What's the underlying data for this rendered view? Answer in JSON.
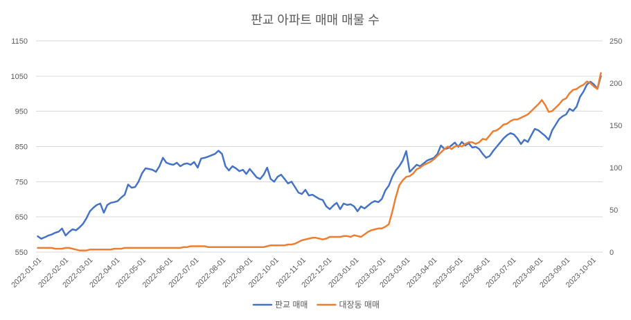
{
  "chart_data": {
    "type": "line",
    "title": "판교 아파트 매매 매물 수",
    "xlabel": "",
    "ylabel": "",
    "grid": true,
    "legend": "bottom",
    "xlim": [
      "2021-12-30",
      "2023-10-13"
    ],
    "x_ticks": [
      "2022-01-01",
      "2022-02-01",
      "2022-03-01",
      "2022-04-01",
      "2022-05-01",
      "2022-06-01",
      "2022-07-01",
      "2022-08-01",
      "2022-09-01",
      "2022-10-01",
      "2022-11-01",
      "2022-12-01",
      "2023-01-01",
      "2023-02-01",
      "2023-03-01",
      "2023-04-01",
      "2023-05-01",
      "2023-06-01",
      "2023-07-01",
      "2023-08-01",
      "2023-09-01",
      "2023-10-01"
    ],
    "y_left": {
      "ylim": [
        550,
        1150
      ],
      "ticks": [
        550,
        650,
        750,
        850,
        950,
        1050,
        1150
      ]
    },
    "y_right": {
      "ylim": [
        0,
        250
      ],
      "ticks": [
        0,
        50,
        100,
        150,
        200,
        250
      ]
    },
    "x": [
      "2022-01-01",
      "2022-01-05",
      "2022-01-09",
      "2022-01-13",
      "2022-01-17",
      "2022-01-21",
      "2022-01-25",
      "2022-01-29",
      "2022-02-02",
      "2022-02-06",
      "2022-02-10",
      "2022-02-14",
      "2022-02-18",
      "2022-02-22",
      "2022-02-26",
      "2022-03-02",
      "2022-03-06",
      "2022-03-10",
      "2022-03-14",
      "2022-03-18",
      "2022-03-22",
      "2022-03-26",
      "2022-03-30",
      "2022-04-03",
      "2022-04-07",
      "2022-04-11",
      "2022-04-15",
      "2022-04-19",
      "2022-04-23",
      "2022-04-27",
      "2022-05-01",
      "2022-05-05",
      "2022-05-09",
      "2022-05-13",
      "2022-05-17",
      "2022-05-21",
      "2022-05-25",
      "2022-05-29",
      "2022-06-02",
      "2022-06-06",
      "2022-06-10",
      "2022-06-14",
      "2022-06-18",
      "2022-06-22",
      "2022-06-26",
      "2022-06-30",
      "2022-07-04",
      "2022-07-08",
      "2022-07-12",
      "2022-07-16",
      "2022-07-20",
      "2022-07-24",
      "2022-07-28",
      "2022-08-01",
      "2022-08-05",
      "2022-08-09",
      "2022-08-13",
      "2022-08-17",
      "2022-08-21",
      "2022-08-25",
      "2022-08-29",
      "2022-09-02",
      "2022-09-06",
      "2022-09-10",
      "2022-09-14",
      "2022-09-18",
      "2022-09-22",
      "2022-09-26",
      "2022-09-30",
      "2022-10-04",
      "2022-10-08",
      "2022-10-12",
      "2022-10-16",
      "2022-10-20",
      "2022-10-24",
      "2022-10-28",
      "2022-11-01",
      "2022-11-05",
      "2022-11-09",
      "2022-11-13",
      "2022-11-17",
      "2022-11-21",
      "2022-11-25",
      "2022-11-29",
      "2022-12-03",
      "2022-12-07",
      "2022-12-11",
      "2022-12-15",
      "2022-12-19",
      "2022-12-23",
      "2022-12-27",
      "2022-12-31",
      "2023-01-04",
      "2023-01-08",
      "2023-01-12",
      "2023-01-16",
      "2023-01-20",
      "2023-01-24",
      "2023-01-28",
      "2023-02-01",
      "2023-02-05",
      "2023-02-09",
      "2023-02-13",
      "2023-02-17",
      "2023-02-21",
      "2023-02-25",
      "2023-03-01",
      "2023-03-05",
      "2023-03-09",
      "2023-03-13",
      "2023-03-17",
      "2023-03-21",
      "2023-03-25",
      "2023-03-29",
      "2023-04-02",
      "2023-04-06",
      "2023-04-10",
      "2023-04-14",
      "2023-04-18",
      "2023-04-22",
      "2023-04-26",
      "2023-04-30",
      "2023-05-04",
      "2023-05-08",
      "2023-05-12",
      "2023-05-16",
      "2023-05-20",
      "2023-05-24",
      "2023-05-28",
      "2023-06-01",
      "2023-06-05",
      "2023-06-09",
      "2023-06-13",
      "2023-06-17",
      "2023-06-21",
      "2023-06-25",
      "2023-06-29",
      "2023-07-03",
      "2023-07-07",
      "2023-07-11",
      "2023-07-15",
      "2023-07-19",
      "2023-07-23",
      "2023-07-27",
      "2023-07-31",
      "2023-08-04",
      "2023-08-08",
      "2023-08-12",
      "2023-08-16",
      "2023-08-20",
      "2023-08-24",
      "2023-08-28",
      "2023-09-01",
      "2023-09-05",
      "2023-09-09",
      "2023-09-13",
      "2023-09-17",
      "2023-09-21",
      "2023-09-25",
      "2023-09-29",
      "2023-10-03",
      "2023-10-07",
      "2023-10-11"
    ],
    "series": [
      {
        "name": "판교 매매",
        "axis": "left",
        "color": "#4472C4",
        "values": [
          595,
          588,
          592,
          597,
          600,
          605,
          608,
          617,
          597,
          607,
          615,
          612,
          620,
          630,
          646,
          666,
          676,
          684,
          688,
          662,
          684,
          690,
          692,
          695,
          705,
          713,
          742,
          733,
          735,
          750,
          774,
          788,
          786,
          784,
          778,
          794,
          818,
          804,
          800,
          798,
          804,
          794,
          800,
          802,
          798,
          806,
          790,
          816,
          818,
          821,
          825,
          829,
          838,
          829,
          794,
          782,
          794,
          788,
          780,
          784,
          772,
          786,
          774,
          762,
          758,
          770,
          790,
          758,
          750,
          764,
          770,
          758,
          745,
          750,
          735,
          719,
          715,
          727,
          711,
          713,
          707,
          701,
          698,
          680,
          672,
          682,
          690,
          672,
          688,
          684,
          686,
          680,
          666,
          680,
          674,
          682,
          690,
          695,
          692,
          701,
          725,
          739,
          764,
          782,
          794,
          810,
          837,
          778,
          788,
          798,
          794,
          802,
          810,
          814,
          818,
          829,
          853,
          843,
          845,
          853,
          861,
          849,
          863,
          853,
          859,
          847,
          849,
          843,
          829,
          818,
          823,
          837,
          849,
          861,
          873,
          882,
          888,
          884,
          873,
          857,
          869,
          863,
          882,
          900,
          896,
          888,
          880,
          869,
          896,
          912,
          928,
          936,
          941,
          957,
          951,
          963,
          991,
          1006,
          1026,
          1034,
          1026,
          1014,
          1050
        ]
      },
      {
        "name": "대장동 매매",
        "axis": "right",
        "color": "#ED7D31",
        "values": [
          5,
          5,
          5,
          5,
          5,
          4,
          4,
          4,
          5,
          5,
          4,
          3,
          2,
          2,
          2,
          3,
          3,
          3,
          3,
          3,
          3,
          3,
          4,
          4,
          4,
          5,
          5,
          5,
          5,
          5,
          5,
          5,
          5,
          5,
          5,
          5,
          5,
          5,
          5,
          5,
          5,
          5,
          6,
          6,
          7,
          7,
          7,
          7,
          7,
          6,
          6,
          6,
          6,
          6,
          6,
          6,
          6,
          6,
          6,
          6,
          6,
          6,
          6,
          6,
          6,
          6,
          7,
          8,
          8,
          8,
          8,
          8,
          9,
          9,
          10,
          12,
          14,
          15,
          16,
          17,
          17,
          16,
          15,
          16,
          18,
          18,
          18,
          18,
          19,
          19,
          18,
          20,
          19,
          18,
          21,
          24,
          26,
          27,
          28,
          28,
          30,
          33,
          48,
          65,
          79,
          85,
          89,
          90,
          93,
          98,
          100,
          103,
          105,
          107,
          110,
          114,
          118,
          122,
          125,
          122,
          125,
          126,
          125,
          128,
          130,
          130,
          128,
          130,
          134,
          133,
          138,
          143,
          144,
          147,
          151,
          152,
          155,
          157,
          157,
          159,
          161,
          163,
          167,
          171,
          175,
          180,
          174,
          166,
          167,
          171,
          175,
          180,
          182,
          188,
          192,
          193,
          196,
          198,
          202,
          200,
          196,
          193,
          212
        ]
      }
    ]
  }
}
